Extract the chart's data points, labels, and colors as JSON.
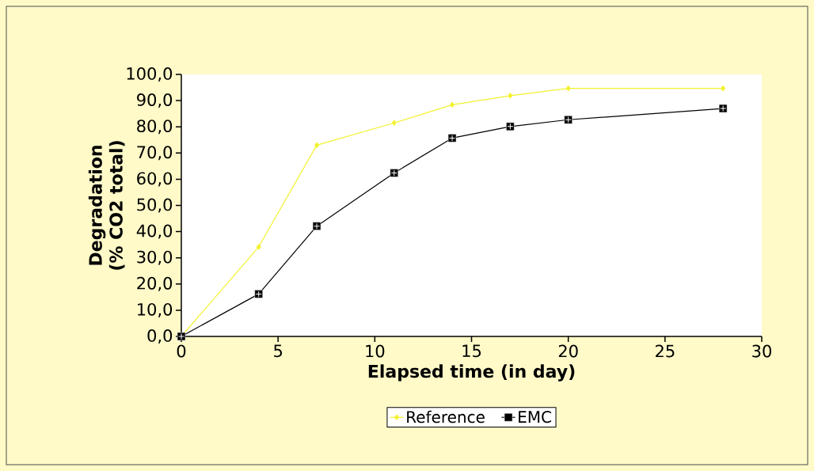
{
  "chart_data": {
    "type": "line",
    "xlabel": "Elapsed time (in day)",
    "ylabel": "Degradation (% CO2 total)",
    "xlim": [
      0,
      30
    ],
    "xticks": [
      0,
      5,
      10,
      15,
      20,
      25,
      30
    ],
    "ylim": [
      0,
      100
    ],
    "yticks": [
      {
        "value": 0,
        "label": "0,0"
      },
      {
        "value": 10,
        "label": "10,0"
      },
      {
        "value": 20,
        "label": "20,0"
      },
      {
        "value": 30,
        "label": "30,0"
      },
      {
        "value": 40,
        "label": "40,0"
      },
      {
        "value": 50,
        "label": "50,0"
      },
      {
        "value": 60,
        "label": "60,0"
      },
      {
        "value": 70,
        "label": "70,0"
      },
      {
        "value": 80,
        "label": "80,0"
      },
      {
        "value": 90,
        "label": "90,0"
      },
      {
        "value": 100,
        "label": "100,0"
      }
    ],
    "x": [
      0,
      4,
      7,
      11,
      14,
      17,
      20,
      28
    ],
    "series": [
      {
        "name": "Reference",
        "color": "#f2f230",
        "marker": "diamond",
        "values": [
          0,
          34.2,
          73.0,
          81.5,
          88.4,
          91.9,
          94.7,
          94.7
        ]
      },
      {
        "name": "EMC",
        "color": "#000000",
        "marker": "square",
        "values": [
          0,
          16.2,
          42.1,
          62.4,
          75.7,
          80.1,
          82.7,
          87.0
        ]
      }
    ],
    "legend": "bottom",
    "grid": false,
    "line_style": "solid"
  }
}
